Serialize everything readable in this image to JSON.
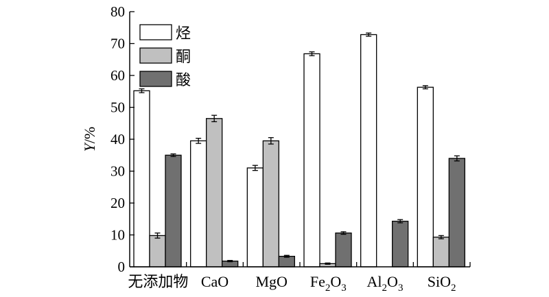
{
  "chart_data": {
    "type": "bar",
    "ylabel_italic": "Y",
    "ylabel_unit": "/%",
    "xlabel": "",
    "ylim": [
      0,
      80
    ],
    "yticks": [
      "0",
      "10",
      "20",
      "30",
      "40",
      "50",
      "60",
      "70",
      "80"
    ],
    "grid": false,
    "legend_position": "top-left",
    "categories": [
      "无添加物",
      "CaO",
      "MgO",
      "Fe2O3",
      "Al2O3",
      "SiO2"
    ],
    "category_labels": [
      {
        "base": "无添加物",
        "parts": []
      },
      {
        "base": "CaO",
        "parts": []
      },
      {
        "base": "MgO",
        "parts": []
      },
      {
        "base": "",
        "parts": [
          [
            "Fe",
            false
          ],
          [
            "2",
            true
          ],
          [
            "O",
            false
          ],
          [
            "3",
            true
          ]
        ]
      },
      {
        "base": "",
        "parts": [
          [
            "Al",
            false
          ],
          [
            "2",
            true
          ],
          [
            "O",
            false
          ],
          [
            "3",
            true
          ]
        ]
      },
      {
        "base": "",
        "parts": [
          [
            "Si",
            false
          ],
          [
            "O",
            false
          ],
          [
            "2",
            true
          ]
        ]
      }
    ],
    "series": [
      {
        "name": "烃",
        "color": "#ffffff",
        "values": [
          55.2,
          39.5,
          31.0,
          66.8,
          72.8,
          56.3
        ],
        "errors": [
          0.6,
          0.8,
          0.8,
          0.6,
          0.5,
          0.5
        ]
      },
      {
        "name": "酮",
        "color": "#c0c0c0",
        "values": [
          9.8,
          46.5,
          39.5,
          1.0,
          null,
          9.3
        ],
        "errors": [
          0.8,
          1.0,
          1.0,
          0.2,
          null,
          0.5
        ]
      },
      {
        "name": "酸",
        "color": "#707070",
        "values": [
          35.0,
          1.8,
          3.3,
          10.6,
          14.3,
          34.0
        ],
        "errors": [
          0.4,
          0.2,
          0.3,
          0.4,
          0.5,
          0.8
        ]
      }
    ]
  }
}
